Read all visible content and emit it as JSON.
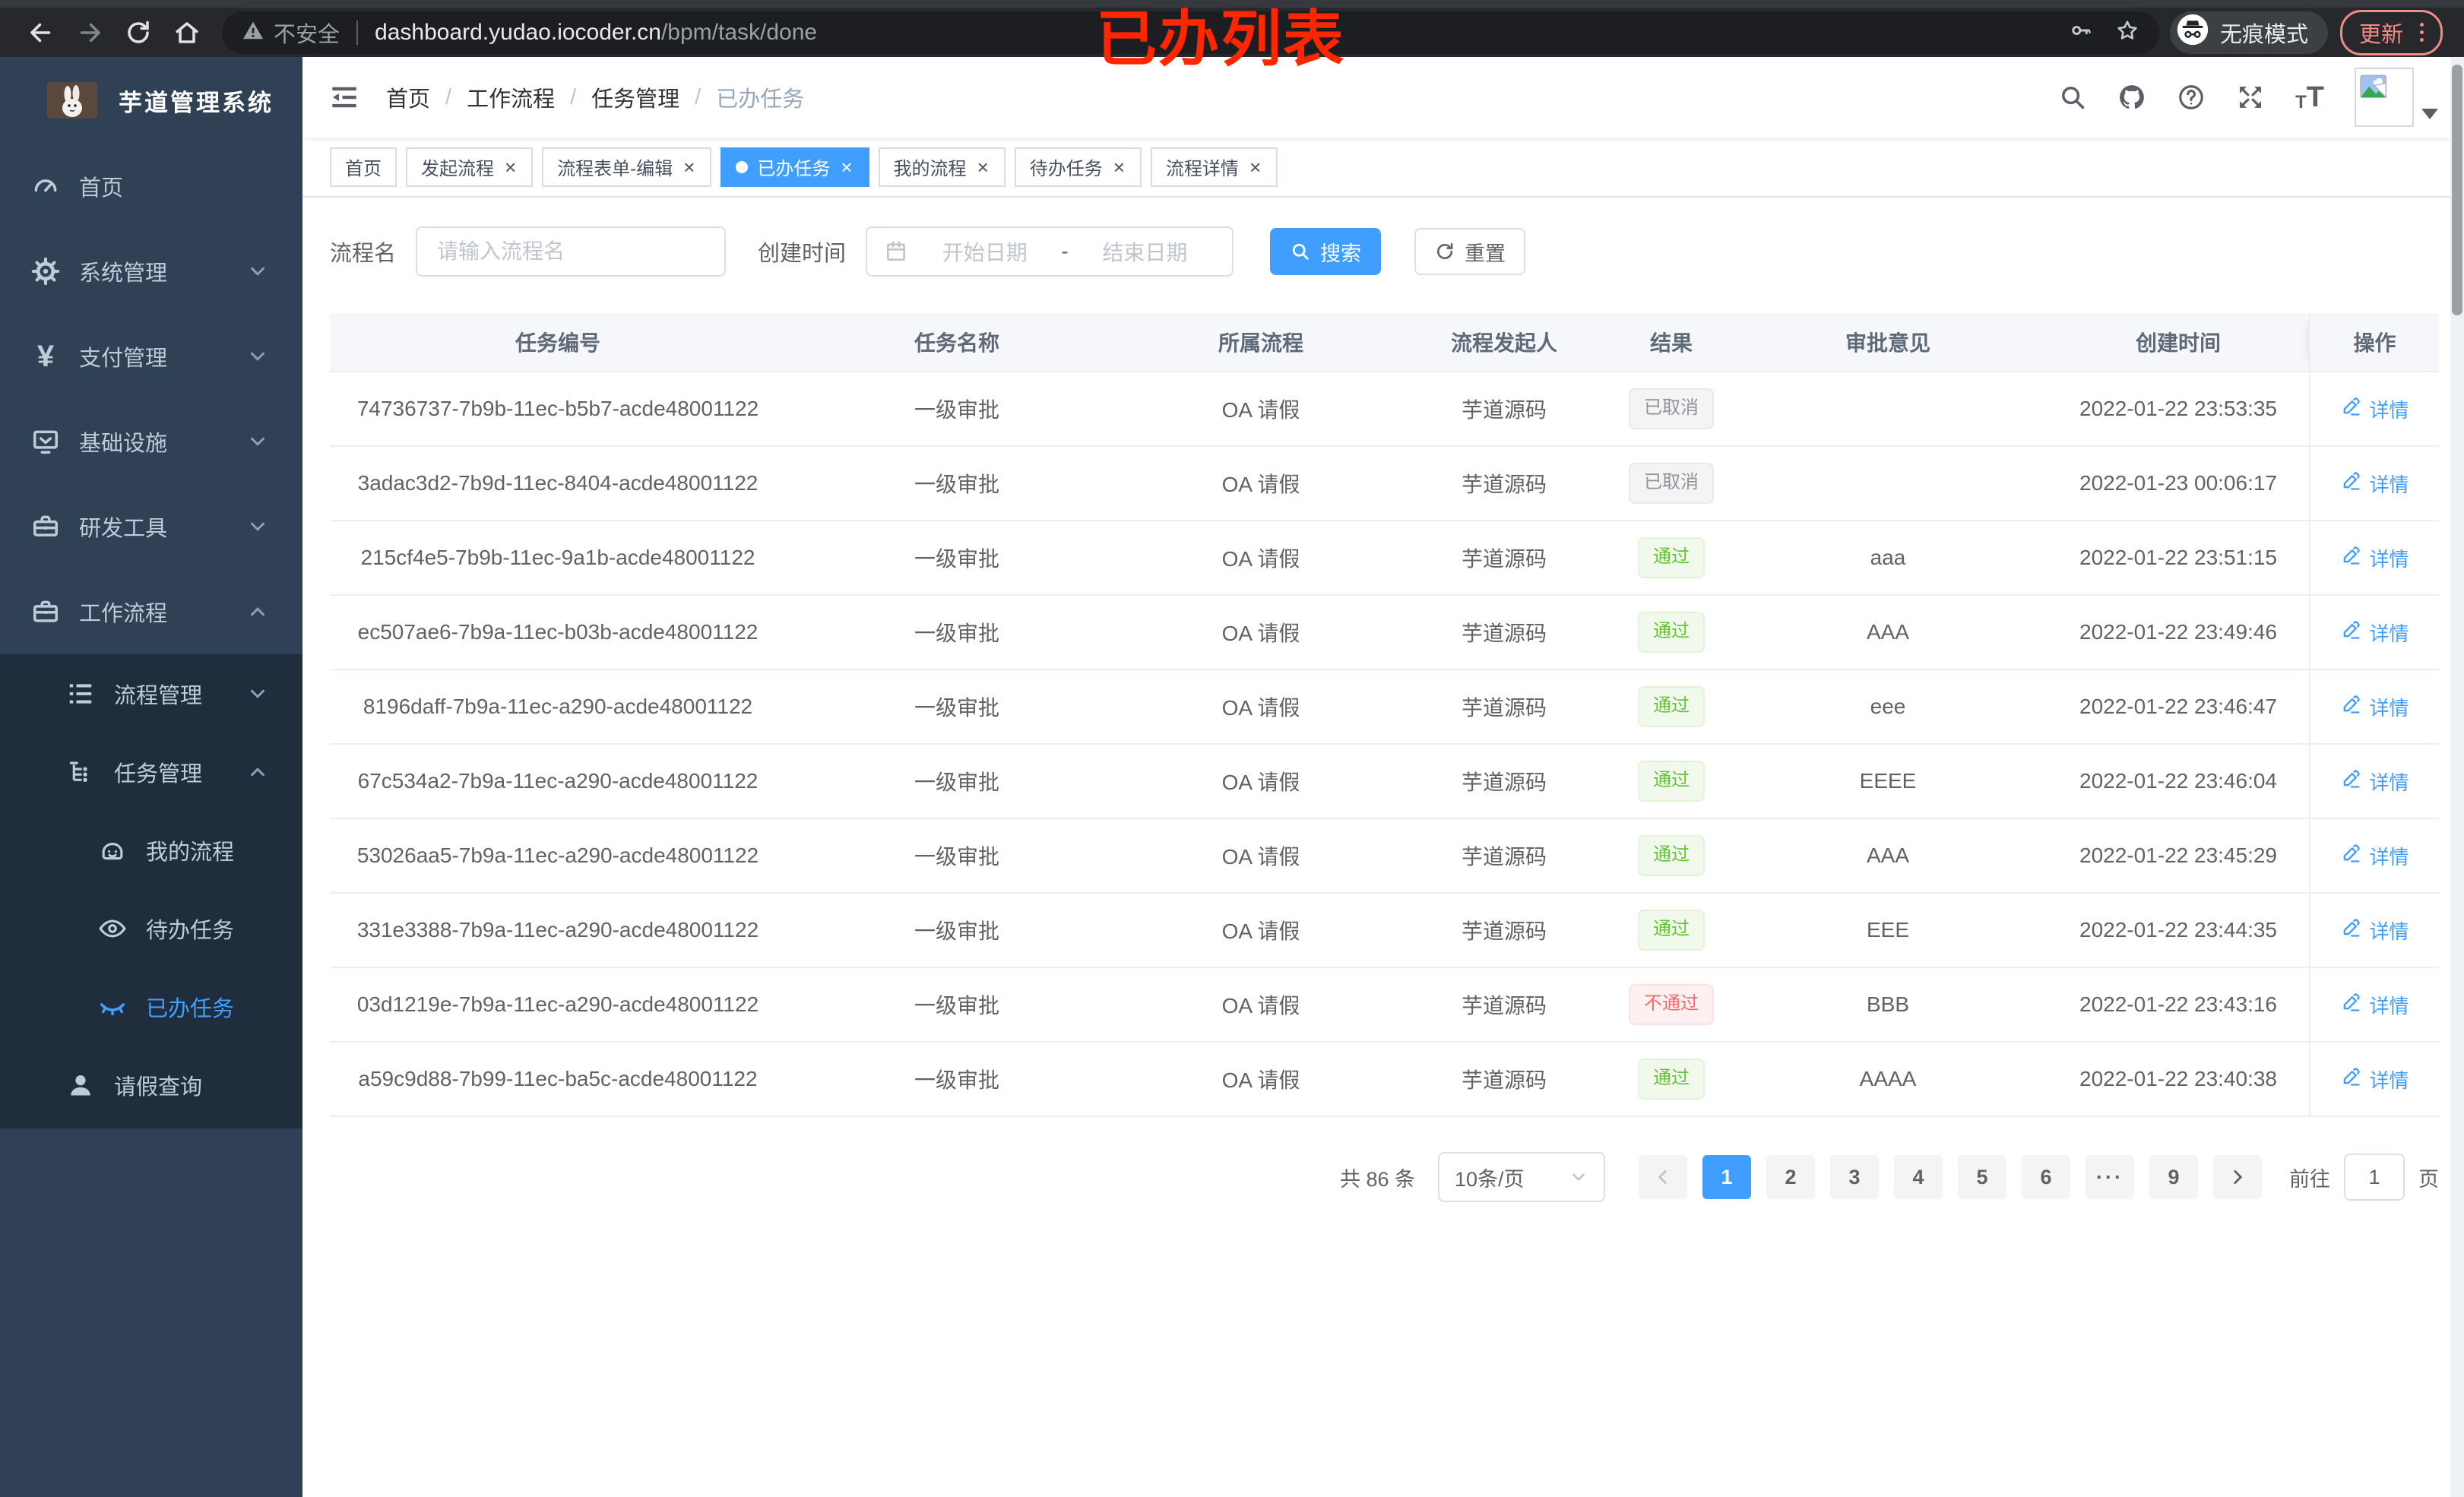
{
  "browser": {
    "security_label": "不安全",
    "url_domain": "dashboard.yudao.iocoder.cn",
    "url_path": "/bpm/task/done",
    "incognito_label": "无痕模式",
    "update_label": "更新",
    "annotation": "已办列表"
  },
  "colors": {
    "accent": "#409eff",
    "success": "#67c23a",
    "danger": "#f56c6c",
    "info": "#909399",
    "sidebar_bg": "#304156",
    "submenu_bg": "#1f2d3d",
    "annotation_red": "#ff2600"
  },
  "sidebar": {
    "title": "芋道管理系统",
    "items": [
      {
        "name": "home",
        "label": "首页",
        "icon": "dashboard-icon"
      },
      {
        "name": "system",
        "label": "系统管理",
        "icon": "gear-icon",
        "chevron": "down"
      },
      {
        "name": "payment",
        "label": "支付管理",
        "icon": "yen-icon",
        "chevron": "down"
      },
      {
        "name": "infra",
        "label": "基础设施",
        "icon": "monitor-icon",
        "chevron": "down"
      },
      {
        "name": "devtools",
        "label": "研发工具",
        "icon": "toolbox-icon",
        "chevron": "down"
      },
      {
        "name": "workflow",
        "label": "工作流程",
        "icon": "briefcase-icon",
        "chevron": "up"
      }
    ],
    "submenu": [
      {
        "name": "process-mgmt",
        "label": "流程管理",
        "icon": "list-icon",
        "chevron": "down",
        "level": 1
      },
      {
        "name": "task-mgmt",
        "label": "任务管理",
        "icon": "flow-icon",
        "chevron": "up",
        "level": 1
      },
      {
        "name": "my-process",
        "label": "我的流程",
        "icon": "face-icon",
        "level": 2
      },
      {
        "name": "todo-tasks",
        "label": "待办任务",
        "icon": "eye-icon",
        "level": 2
      },
      {
        "name": "done-tasks",
        "label": "已办任务",
        "icon": "eye-closed-icon",
        "level": 2,
        "active": true
      },
      {
        "name": "leave-query",
        "label": "请假查询",
        "icon": "user-icon",
        "level": 1
      }
    ]
  },
  "header": {
    "breadcrumb": [
      "首页",
      "工作流程",
      "任务管理",
      "已办任务"
    ],
    "breadcrumb_separator": "/"
  },
  "tabs": [
    {
      "name": "home",
      "label": "首页"
    },
    {
      "name": "start-process",
      "label": "发起流程",
      "closable": true
    },
    {
      "name": "form-edit",
      "label": "流程表单-编辑",
      "closable": true
    },
    {
      "name": "done-tasks",
      "label": "已办任务",
      "closable": true,
      "active": true
    },
    {
      "name": "my-process",
      "label": "我的流程",
      "closable": true
    },
    {
      "name": "todo-tasks",
      "label": "待办任务",
      "closable": true
    },
    {
      "name": "process-detail",
      "label": "流程详情",
      "closable": true
    }
  ],
  "filters": {
    "name_label": "流程名",
    "name_placeholder": "请输入流程名",
    "time_label": "创建时间",
    "start_placeholder": "开始日期",
    "date_separator": "-",
    "end_placeholder": "结束日期",
    "search_label": "搜索",
    "reset_label": "重置"
  },
  "table": {
    "columns": [
      "任务编号",
      "任务名称",
      "所属流程",
      "流程发起人",
      "结果",
      "审批意见",
      "创建时间",
      "操作"
    ],
    "action_label": "详情",
    "rows": [
      {
        "id": "74736737-7b9b-11ec-b5b7-acde48001122",
        "name": "一级审批",
        "process": "OA 请假",
        "starter": "芋道源码",
        "result": {
          "label": "已取消",
          "type": "info"
        },
        "opinion": "",
        "created": "2022-01-22 23:53:35"
      },
      {
        "id": "3adac3d2-7b9d-11ec-8404-acde48001122",
        "name": "一级审批",
        "process": "OA 请假",
        "starter": "芋道源码",
        "result": {
          "label": "已取消",
          "type": "info"
        },
        "opinion": "",
        "created": "2022-01-23 00:06:17"
      },
      {
        "id": "215cf4e5-7b9b-11ec-9a1b-acde48001122",
        "name": "一级审批",
        "process": "OA 请假",
        "starter": "芋道源码",
        "result": {
          "label": "通过",
          "type": "success"
        },
        "opinion": "aaa",
        "created": "2022-01-22 23:51:15"
      },
      {
        "id": "ec507ae6-7b9a-11ec-b03b-acde48001122",
        "name": "一级审批",
        "process": "OA 请假",
        "starter": "芋道源码",
        "result": {
          "label": "通过",
          "type": "success"
        },
        "opinion": "AAA",
        "created": "2022-01-22 23:49:46"
      },
      {
        "id": "8196daff-7b9a-11ec-a290-acde48001122",
        "name": "一级审批",
        "process": "OA 请假",
        "starter": "芋道源码",
        "result": {
          "label": "通过",
          "type": "success"
        },
        "opinion": "eee",
        "created": "2022-01-22 23:46:47"
      },
      {
        "id": "67c534a2-7b9a-11ec-a290-acde48001122",
        "name": "一级审批",
        "process": "OA 请假",
        "starter": "芋道源码",
        "result": {
          "label": "通过",
          "type": "success"
        },
        "opinion": "EEEE",
        "created": "2022-01-22 23:46:04"
      },
      {
        "id": "53026aa5-7b9a-11ec-a290-acde48001122",
        "name": "一级审批",
        "process": "OA 请假",
        "starter": "芋道源码",
        "result": {
          "label": "通过",
          "type": "success"
        },
        "opinion": "AAA",
        "created": "2022-01-22 23:45:29"
      },
      {
        "id": "331e3388-7b9a-11ec-a290-acde48001122",
        "name": "一级审批",
        "process": "OA 请假",
        "starter": "芋道源码",
        "result": {
          "label": "通过",
          "type": "success"
        },
        "opinion": "EEE",
        "created": "2022-01-22 23:44:35"
      },
      {
        "id": "03d1219e-7b9a-11ec-a290-acde48001122",
        "name": "一级审批",
        "process": "OA 请假",
        "starter": "芋道源码",
        "result": {
          "label": "不通过",
          "type": "danger"
        },
        "opinion": "BBB",
        "created": "2022-01-22 23:43:16"
      },
      {
        "id": "a59c9d88-7b99-11ec-ba5c-acde48001122",
        "name": "一级审批",
        "process": "OA 请假",
        "starter": "芋道源码",
        "result": {
          "label": "通过",
          "type": "success"
        },
        "opinion": "AAAA",
        "created": "2022-01-22 23:40:38"
      }
    ]
  },
  "pagination": {
    "total_label": "共 86 条",
    "page_size": "10条/页",
    "pages": [
      {
        "label": "1",
        "active": true
      },
      {
        "label": "2"
      },
      {
        "label": "3"
      },
      {
        "label": "4"
      },
      {
        "label": "5"
      },
      {
        "label": "6"
      },
      {
        "label": "···",
        "ellipsis": true
      },
      {
        "label": "9"
      }
    ],
    "goto_label": "前往",
    "goto_value": "1",
    "page_label": "页"
  }
}
